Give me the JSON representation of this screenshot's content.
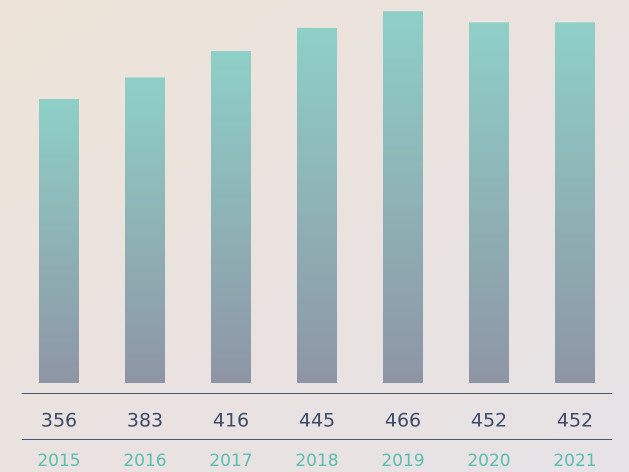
{
  "chart_data": {
    "type": "bar",
    "categories": [
      "2015",
      "2016",
      "2017",
      "2018",
      "2019",
      "2020",
      "2021"
    ],
    "values": [
      356,
      383,
      416,
      445,
      466,
      452,
      452
    ],
    "ylim": [
      0,
      470
    ],
    "colors": [
      "#8ed0c7",
      "#8e95a5"
    ]
  }
}
